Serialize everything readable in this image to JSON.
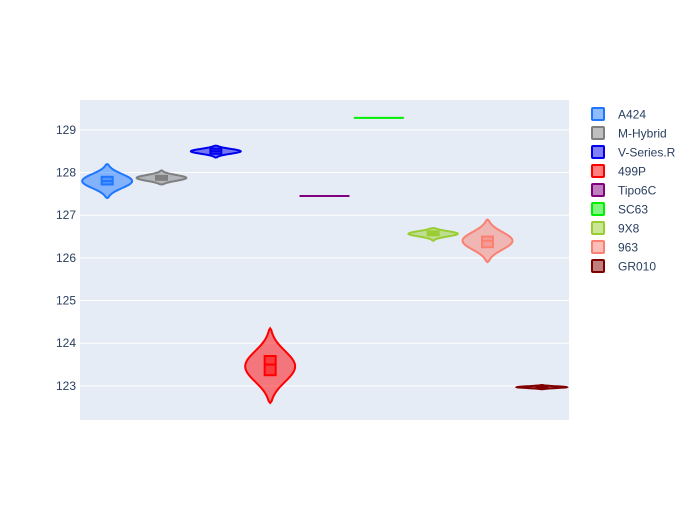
{
  "chart_data": {
    "type": "violin",
    "title": "",
    "xlabel": "",
    "ylabel": "",
    "ylim": [
      122.2,
      129.7
    ],
    "yticks": [
      123,
      124,
      125,
      126,
      127,
      128,
      129
    ],
    "grid": true,
    "legend_position": "right",
    "series": [
      {
        "name": "A424",
        "color": "#1f77ff",
        "median": 127.8,
        "q1": 127.72,
        "q3": 127.9,
        "min": 127.4,
        "max": 128.2,
        "kde_peak": 127.8
      },
      {
        "name": "M-Hybrid",
        "color": "#7f7f7f",
        "median": 127.87,
        "q1": 127.83,
        "q3": 127.92,
        "min": 127.72,
        "max": 128.05,
        "kde_peak": 127.87
      },
      {
        "name": "V-Series.R",
        "color": "#0000ee",
        "median": 128.5,
        "q1": 128.44,
        "q3": 128.56,
        "min": 128.35,
        "max": 128.63,
        "kde_peak": 128.5
      },
      {
        "name": "499P",
        "color": "#ff0000",
        "median": 123.5,
        "q1": 123.25,
        "q3": 123.7,
        "min": 122.6,
        "max": 124.35,
        "kde_peak": 123.45
      },
      {
        "name": "Tipo6C",
        "color": "#800080",
        "median": 127.45,
        "q1": 127.45,
        "q3": 127.45,
        "min": 127.45,
        "max": 127.45,
        "kde_peak": 127.45
      },
      {
        "name": "SC63",
        "color": "#00ee00",
        "median": 129.28,
        "q1": 129.28,
        "q3": 129.28,
        "min": 129.28,
        "max": 129.28,
        "kde_peak": 129.28
      },
      {
        "name": "9X8",
        "color": "#9acd32",
        "median": 126.57,
        "q1": 126.53,
        "q3": 126.62,
        "min": 126.4,
        "max": 126.7,
        "kde_peak": 126.57
      },
      {
        "name": "963",
        "color": "#fa8072",
        "median": 126.4,
        "q1": 126.25,
        "q3": 126.5,
        "min": 125.9,
        "max": 126.9,
        "kde_peak": 126.4
      },
      {
        "name": "GR010",
        "color": "#800000",
        "median": 122.97,
        "q1": 122.95,
        "q3": 123.0,
        "min": 122.92,
        "max": 123.02,
        "kde_peak": 122.97
      }
    ]
  }
}
